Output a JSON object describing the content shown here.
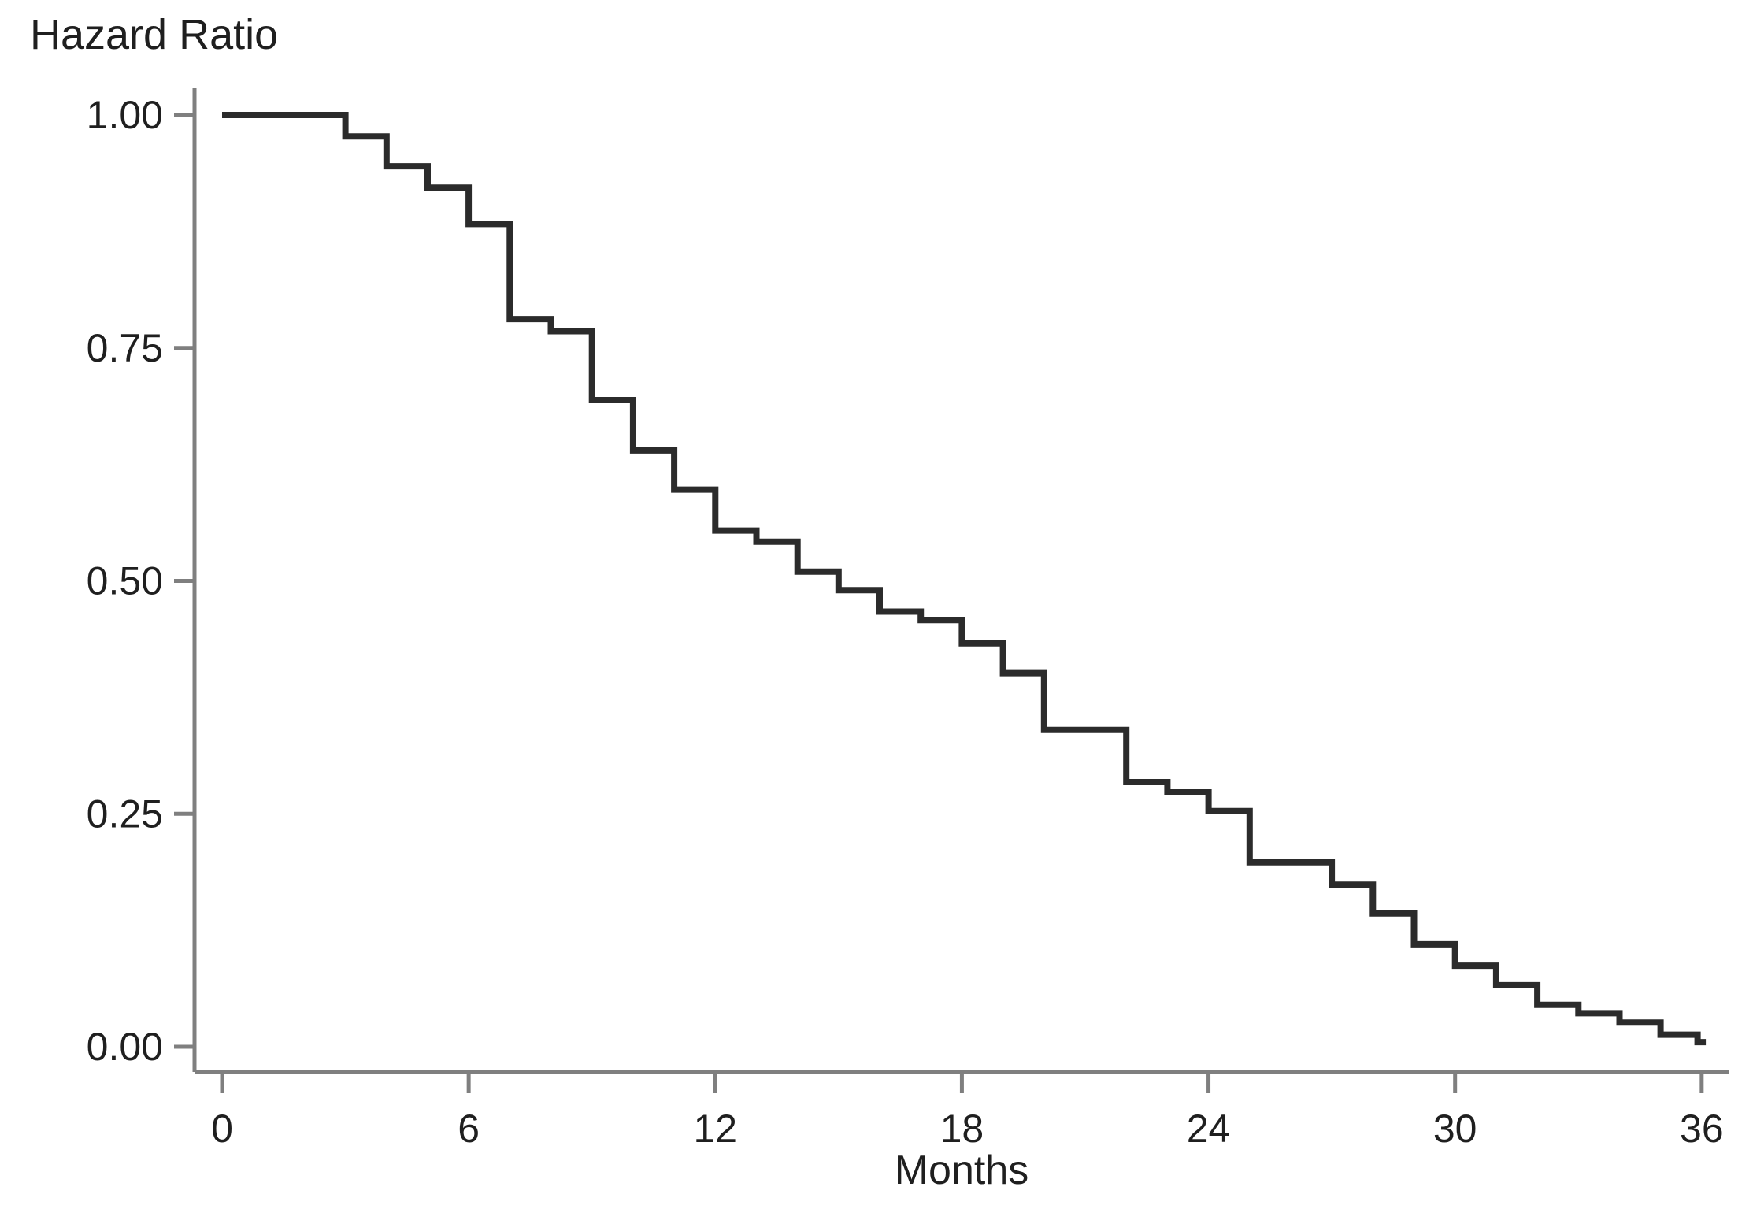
{
  "colors": {
    "background": "#ffffff",
    "axis": "#7f7f7f",
    "tick": "#7f7f7f",
    "text": "#1f1f1f",
    "curve": "#2b2b2b"
  },
  "chart_data": {
    "type": "line",
    "subtype": "kaplan-meier-step",
    "title": "Hazard Ratio",
    "xlabel": "Months",
    "ylabel": "Hazard Ratio",
    "grid": false,
    "legend_position": "none",
    "xlim": [
      0,
      36
    ],
    "ylim": [
      0.0,
      1.0
    ],
    "x_tick_values": [
      0,
      6,
      12,
      18,
      24,
      30,
      36
    ],
    "x_tick_labels": [
      "0",
      "6",
      "12",
      "18",
      "24",
      "30",
      "36"
    ],
    "y_tick_values": [
      1.0,
      0.75,
      0.5,
      0.25,
      0.0
    ],
    "y_tick_labels": [
      "1.00",
      "0.75",
      "0.50",
      "0.25",
      "0.00"
    ],
    "series": [
      {
        "name": "Hazard Ratio",
        "color": "#2b2b2b",
        "step_points": [
          [
            0,
            1.0
          ],
          [
            3,
            0.977
          ],
          [
            4,
            0.945
          ],
          [
            5,
            0.922
          ],
          [
            6,
            0.883
          ],
          [
            7,
            0.781
          ],
          [
            8,
            0.768
          ],
          [
            9,
            0.694
          ],
          [
            10,
            0.64
          ],
          [
            11,
            0.598
          ],
          [
            12,
            0.554
          ],
          [
            13,
            0.542
          ],
          [
            14,
            0.51
          ],
          [
            15,
            0.49
          ],
          [
            16,
            0.467
          ],
          [
            17,
            0.458
          ],
          [
            18,
            0.433
          ],
          [
            19,
            0.401
          ],
          [
            20,
            0.34
          ],
          [
            22,
            0.284
          ],
          [
            23,
            0.273
          ],
          [
            24,
            0.253
          ],
          [
            25,
            0.198
          ],
          [
            27,
            0.174
          ],
          [
            28,
            0.143
          ],
          [
            29,
            0.11
          ],
          [
            30,
            0.087
          ],
          [
            31,
            0.066
          ],
          [
            32,
            0.045
          ],
          [
            33,
            0.036
          ],
          [
            34,
            0.026
          ],
          [
            35,
            0.013
          ],
          [
            35.9,
            0.005
          ]
        ],
        "end_month": 36.1
      }
    ]
  }
}
